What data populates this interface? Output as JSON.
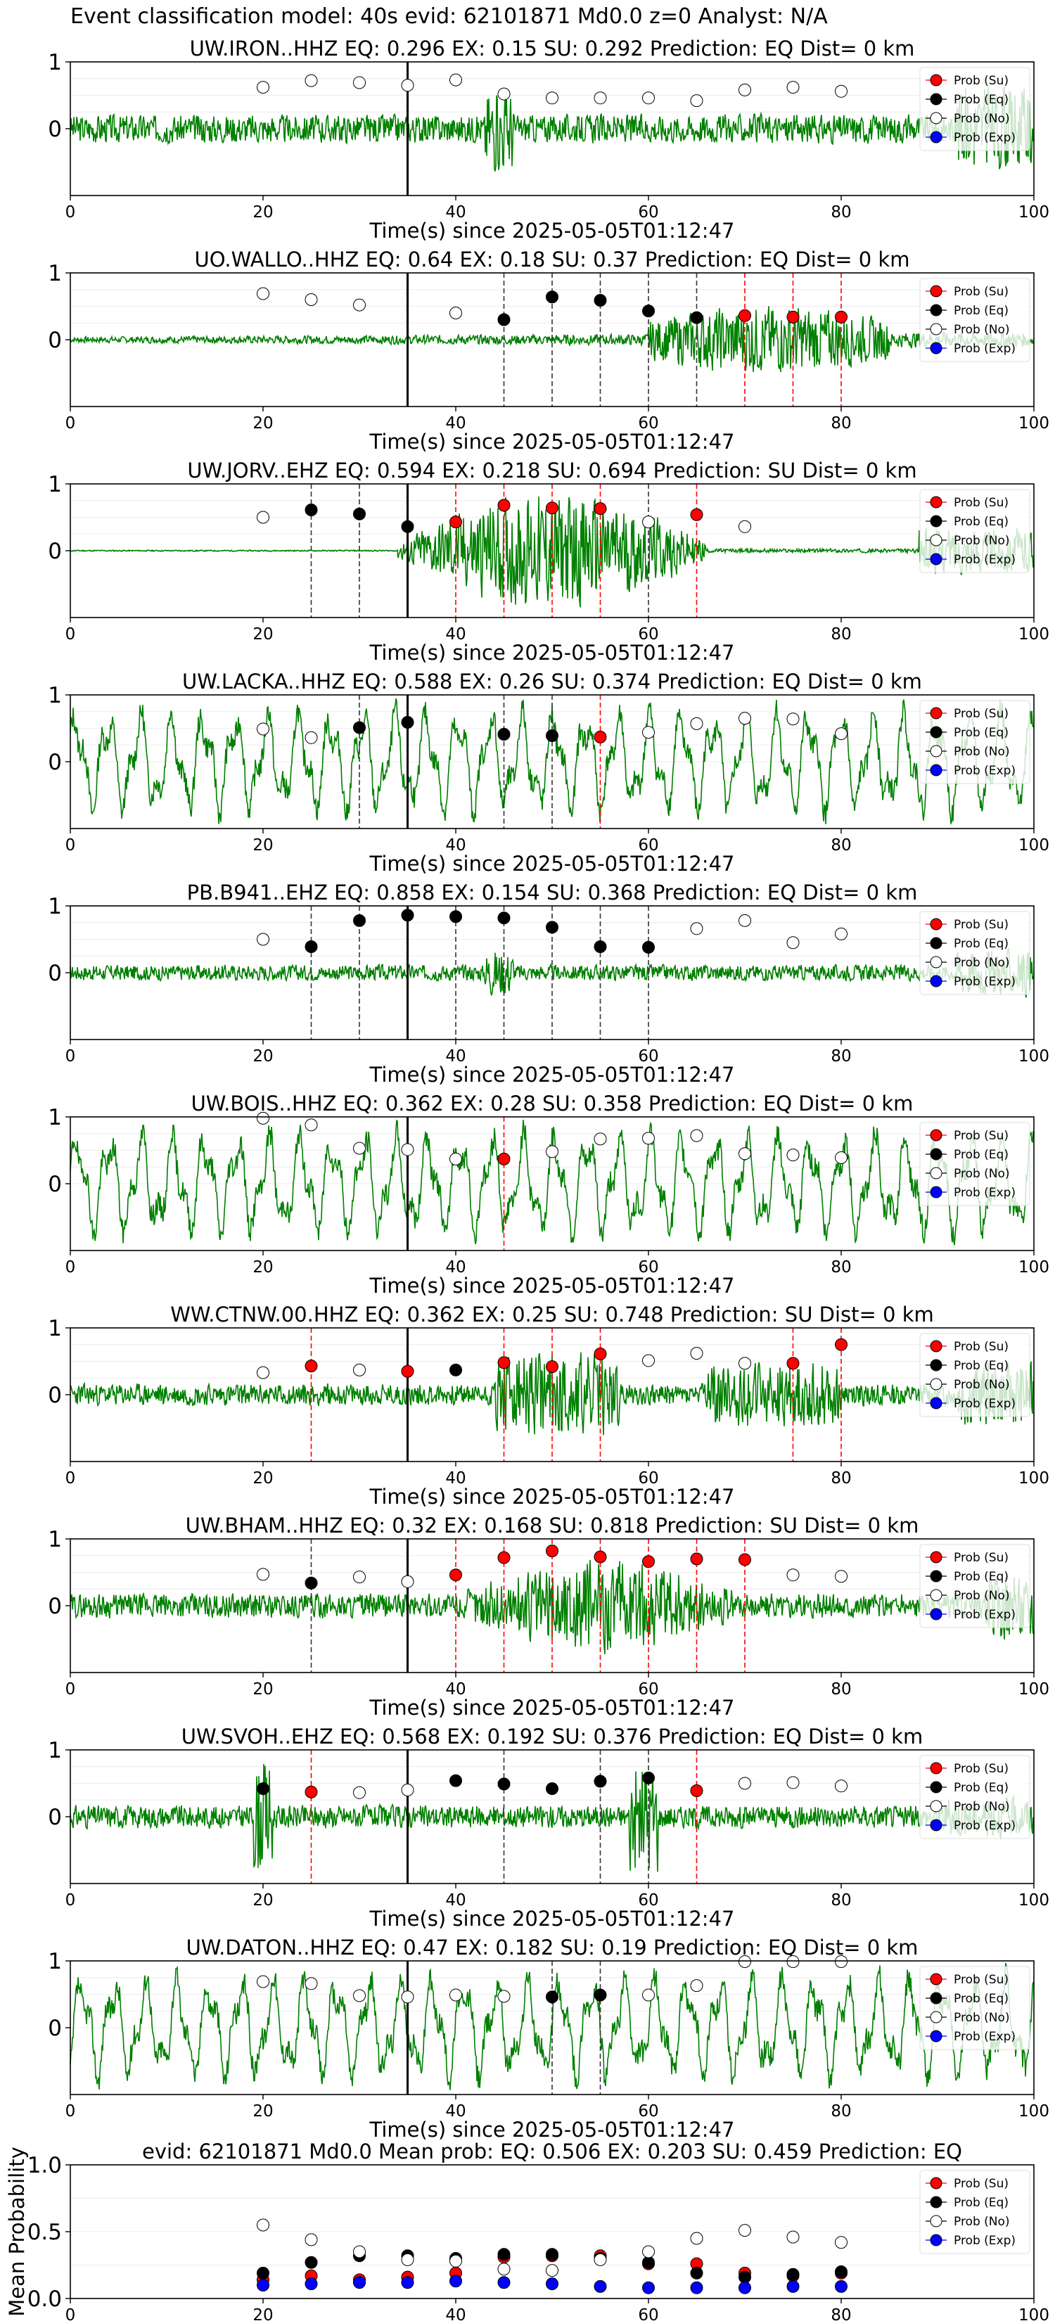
{
  "suptitle": "Event classification model: 40s evid: 62101871 Md0.0 z=0 Analyst: N/A",
  "xlabel": "Time(s) since 2025-05-05T01:12:47",
  "legend": [
    "Prob (Su)",
    "Prob (Eq)",
    "Prob (No)",
    "Prob (Exp)"
  ],
  "colors": {
    "su": "#ff0000",
    "eq": "#000000",
    "no": "#ffffff",
    "exp": "#0000ff",
    "waveform": "#008000",
    "vline_su": "#ff0000",
    "vline_eq": "#333333",
    "pick": "#000000"
  },
  "chart_data": [
    {
      "type": "line",
      "title": "UW.IRON..HHZ   EQ: 0.296  EX: 0.15  SU: 0.292   Prediction: EQ    Dist= 0 km",
      "amp": 1.0,
      "seed": 3,
      "style": "noise",
      "xlim": [
        0,
        100
      ],
      "ylim": [
        -1,
        1
      ],
      "yticks": [
        0,
        1
      ],
      "xticks": [
        0,
        20,
        40,
        60,
        80,
        100
      ],
      "pick_time": 35,
      "legend_position": "upper right",
      "times": [
        20,
        25,
        30,
        35,
        40,
        45,
        50,
        55,
        60,
        65,
        70,
        75,
        80
      ],
      "classes": [
        "no",
        "no",
        "no",
        "no",
        "no",
        "no",
        "no",
        "no",
        "no",
        "no",
        "no",
        "no",
        "no"
      ],
      "values": [
        0.62,
        0.72,
        0.69,
        0.65,
        0.73,
        0.52,
        0.46,
        0.46,
        0.46,
        0.42,
        0.58,
        0.62,
        0.56
      ],
      "vlines": []
    },
    {
      "type": "line",
      "title": "UO.WALLO..HHZ   EQ: 0.64  EX: 0.18  SU: 0.37   Prediction: EQ    Dist= 0 km",
      "amp": 0.6,
      "seed": 7,
      "style": "event",
      "xlim": [
        0,
        100
      ],
      "ylim": [
        -1,
        1
      ],
      "yticks": [
        0,
        1
      ],
      "xticks": [
        0,
        20,
        40,
        60,
        80,
        100
      ],
      "pick_time": 35,
      "legend_position": "upper right",
      "times": [
        20,
        25,
        30,
        40,
        45,
        50,
        55,
        60,
        65,
        70,
        75,
        80
      ],
      "classes": [
        "no",
        "no",
        "no",
        "no",
        "eq",
        "eq",
        "eq",
        "eq",
        "eq",
        "su",
        "su",
        "su"
      ],
      "values": [
        0.69,
        0.6,
        0.52,
        0.4,
        0.3,
        0.64,
        0.59,
        0.43,
        0.33,
        0.36,
        0.34,
        0.34
      ],
      "vlines": [
        {
          "x": 45,
          "c": "eq"
        },
        {
          "x": 50,
          "c": "eq"
        },
        {
          "x": 55,
          "c": "eq"
        },
        {
          "x": 60,
          "c": "eq"
        },
        {
          "x": 65,
          "c": "eq"
        },
        {
          "x": 70,
          "c": "su"
        },
        {
          "x": 75,
          "c": "su"
        },
        {
          "x": 80,
          "c": "su"
        }
      ]
    },
    {
      "type": "line",
      "title": "UW.JORV..EHZ   EQ: 0.594  EX: 0.218  SU: 0.694   Prediction: SU    Dist= 0 km",
      "amp": 0.9,
      "seed": 11,
      "style": "burst",
      "xlim": [
        0,
        100
      ],
      "ylim": [
        -1,
        1
      ],
      "yticks": [
        0,
        1
      ],
      "xticks": [
        0,
        20,
        40,
        60,
        80,
        100
      ],
      "pick_time": 35,
      "legend_position": "upper right",
      "times": [
        20,
        25,
        30,
        35,
        40,
        45,
        50,
        55,
        60,
        65,
        70
      ],
      "classes": [
        "no",
        "eq",
        "eq",
        "eq",
        "su",
        "su",
        "su",
        "su",
        "no",
        "su",
        "no"
      ],
      "values": [
        0.5,
        0.61,
        0.55,
        0.36,
        0.43,
        0.68,
        0.64,
        0.63,
        0.43,
        0.54,
        0.36
      ],
      "vlines": [
        {
          "x": 25,
          "c": "eq"
        },
        {
          "x": 30,
          "c": "eq"
        },
        {
          "x": 40,
          "c": "su"
        },
        {
          "x": 45,
          "c": "su"
        },
        {
          "x": 50,
          "c": "su"
        },
        {
          "x": 55,
          "c": "su"
        },
        {
          "x": 60,
          "c": "eq"
        },
        {
          "x": 65,
          "c": "su"
        }
      ]
    },
    {
      "type": "line",
      "title": "UW.LACKA..HHZ   EQ: 0.588  EX: 0.26  SU: 0.374   Prediction: EQ    Dist= 0 km",
      "amp": 0.9,
      "seed": 13,
      "style": "wave",
      "xlim": [
        0,
        100
      ],
      "ylim": [
        -1,
        1
      ],
      "yticks": [
        0,
        1
      ],
      "xticks": [
        0,
        20,
        40,
        60,
        80,
        100
      ],
      "pick_time": 35,
      "legend_position": "upper right",
      "times": [
        20,
        25,
        30,
        35,
        45,
        50,
        55,
        60,
        65,
        70,
        75,
        80
      ],
      "classes": [
        "no",
        "no",
        "eq",
        "eq",
        "eq",
        "eq",
        "su",
        "no",
        "no",
        "no",
        "no",
        "no"
      ],
      "values": [
        0.49,
        0.36,
        0.51,
        0.59,
        0.41,
        0.39,
        0.37,
        0.44,
        0.57,
        0.65,
        0.64,
        0.42
      ],
      "vlines": [
        {
          "x": 30,
          "c": "eq"
        },
        {
          "x": 45,
          "c": "eq"
        },
        {
          "x": 50,
          "c": "eq"
        },
        {
          "x": 55,
          "c": "su"
        }
      ]
    },
    {
      "type": "line",
      "title": "PB.B941..EHZ   EQ: 0.858  EX: 0.154  SU: 0.368   Prediction: EQ    Dist= 0 km",
      "amp": 0.55,
      "seed": 17,
      "style": "noise",
      "xlim": [
        0,
        100
      ],
      "ylim": [
        -1,
        1
      ],
      "yticks": [
        0,
        1
      ],
      "xticks": [
        0,
        20,
        40,
        60,
        80,
        100
      ],
      "pick_time": 35,
      "legend_position": "upper right",
      "times": [
        20,
        25,
        30,
        35,
        40,
        45,
        50,
        55,
        60,
        65,
        70,
        75,
        80
      ],
      "classes": [
        "no",
        "eq",
        "eq",
        "eq",
        "eq",
        "eq",
        "eq",
        "eq",
        "eq",
        "no",
        "no",
        "no",
        "no"
      ],
      "values": [
        0.5,
        0.39,
        0.78,
        0.86,
        0.84,
        0.82,
        0.68,
        0.39,
        0.38,
        0.66,
        0.78,
        0.45,
        0.58
      ],
      "vlines": [
        {
          "x": 25,
          "c": "eq"
        },
        {
          "x": 30,
          "c": "eq"
        },
        {
          "x": 40,
          "c": "eq"
        },
        {
          "x": 45,
          "c": "eq"
        },
        {
          "x": 50,
          "c": "eq"
        },
        {
          "x": 55,
          "c": "eq"
        },
        {
          "x": 60,
          "c": "eq"
        }
      ]
    },
    {
      "type": "line",
      "title": "UW.BOIS..HHZ   EQ: 0.362  EX: 0.28  SU: 0.358   Prediction: EQ    Dist= 0 km",
      "amp": 1.0,
      "seed": 19,
      "style": "wave",
      "xlim": [
        0,
        100
      ],
      "ylim": [
        -1,
        1
      ],
      "yticks": [
        0,
        1
      ],
      "xticks": [
        0,
        20,
        40,
        60,
        80,
        100
      ],
      "pick_time": 35,
      "legend_position": "upper right",
      "times": [
        20,
        25,
        30,
        35,
        40,
        45,
        50,
        55,
        60,
        65,
        70,
        75,
        80
      ],
      "classes": [
        "no",
        "no",
        "no",
        "no",
        "no",
        "su",
        "no",
        "no",
        "no",
        "no",
        "no",
        "no",
        "no"
      ],
      "values": [
        0.98,
        0.88,
        0.53,
        0.51,
        0.37,
        0.37,
        0.48,
        0.67,
        0.68,
        0.72,
        0.45,
        0.43,
        0.39
      ],
      "vlines": [
        {
          "x": 45,
          "c": "su"
        }
      ]
    },
    {
      "type": "line",
      "title": "WW.CTNW.00.HHZ   EQ: 0.362  EX: 0.25  SU: 0.748   Prediction: SU    Dist= 0 km",
      "amp": 0.85,
      "seed": 23,
      "style": "multi",
      "xlim": [
        0,
        100
      ],
      "ylim": [
        -1,
        1
      ],
      "yticks": [
        0,
        1
      ],
      "xticks": [
        0,
        20,
        40,
        60,
        80,
        100
      ],
      "pick_time": 35,
      "legend_position": "upper right",
      "times": [
        20,
        25,
        30,
        35,
        40,
        45,
        50,
        55,
        60,
        65,
        70,
        75,
        80
      ],
      "classes": [
        "no",
        "su",
        "no",
        "su",
        "eq",
        "su",
        "su",
        "su",
        "no",
        "no",
        "no",
        "su",
        "su"
      ],
      "values": [
        0.33,
        0.43,
        0.37,
        0.35,
        0.37,
        0.48,
        0.42,
        0.61,
        0.51,
        0.62,
        0.47,
        0.47,
        0.75
      ],
      "vlines": [
        {
          "x": 25,
          "c": "su"
        },
        {
          "x": 45,
          "c": "su"
        },
        {
          "x": 50,
          "c": "su"
        },
        {
          "x": 55,
          "c": "su"
        },
        {
          "x": 75,
          "c": "su"
        },
        {
          "x": 80,
          "c": "su"
        }
      ]
    },
    {
      "type": "line",
      "title": "UW.BHAM..HHZ   EQ: 0.32  EX: 0.168  SU: 0.818   Prediction: SU    Dist= 0 km",
      "amp": 0.85,
      "seed": 29,
      "style": "burst2",
      "xlim": [
        0,
        100
      ],
      "ylim": [
        -1,
        1
      ],
      "yticks": [
        0,
        1
      ],
      "xticks": [
        0,
        20,
        40,
        60,
        80,
        100
      ],
      "pick_time": 35,
      "legend_position": "upper right",
      "times": [
        20,
        25,
        30,
        35,
        40,
        45,
        50,
        55,
        60,
        65,
        70,
        75,
        80
      ],
      "classes": [
        "no",
        "eq",
        "no",
        "no",
        "su",
        "su",
        "su",
        "su",
        "su",
        "su",
        "su",
        "no",
        "no"
      ],
      "values": [
        0.47,
        0.34,
        0.43,
        0.36,
        0.46,
        0.72,
        0.82,
        0.73,
        0.66,
        0.7,
        0.69,
        0.46,
        0.44
      ],
      "vlines": [
        {
          "x": 25,
          "c": "eq"
        },
        {
          "x": 40,
          "c": "su"
        },
        {
          "x": 45,
          "c": "su"
        },
        {
          "x": 50,
          "c": "su"
        },
        {
          "x": 55,
          "c": "su"
        },
        {
          "x": 60,
          "c": "su"
        },
        {
          "x": 65,
          "c": "su"
        },
        {
          "x": 70,
          "c": "su"
        }
      ]
    },
    {
      "type": "line",
      "title": "UW.SVOH..EHZ   EQ: 0.568  EX: 0.192  SU: 0.376   Prediction: EQ    Dist= 0 km",
      "amp": 0.8,
      "seed": 31,
      "style": "spikes",
      "xlim": [
        0,
        100
      ],
      "ylim": [
        -1,
        1
      ],
      "yticks": [
        0,
        1
      ],
      "xticks": [
        0,
        20,
        40,
        60,
        80,
        100
      ],
      "pick_time": 35,
      "legend_position": "upper right",
      "times": [
        20,
        25,
        30,
        35,
        40,
        45,
        50,
        55,
        60,
        65,
        70,
        75,
        80
      ],
      "classes": [
        "eq",
        "su",
        "no",
        "no",
        "eq",
        "eq",
        "eq",
        "eq",
        "eq",
        "su",
        "no",
        "no",
        "no"
      ],
      "values": [
        0.42,
        0.37,
        0.36,
        0.4,
        0.54,
        0.49,
        0.42,
        0.53,
        0.58,
        0.39,
        0.5,
        0.51,
        0.46
      ],
      "vlines": [
        {
          "x": 25,
          "c": "su"
        },
        {
          "x": 45,
          "c": "eq"
        },
        {
          "x": 55,
          "c": "eq"
        },
        {
          "x": 60,
          "c": "eq"
        },
        {
          "x": 65,
          "c": "su"
        }
      ]
    },
    {
      "type": "line",
      "title": "UW.DATON..HHZ   EQ: 0.47  EX: 0.182  SU: 0.19   Prediction: EQ    Dist= 0 km",
      "amp": 0.9,
      "seed": 37,
      "style": "wave",
      "xlim": [
        0,
        100
      ],
      "ylim": [
        -1,
        1
      ],
      "yticks": [
        0,
        1
      ],
      "xticks": [
        0,
        20,
        40,
        60,
        80,
        100
      ],
      "pick_time": 35,
      "legend_position": "upper right",
      "times": [
        20,
        25,
        30,
        35,
        40,
        45,
        50,
        55,
        60,
        65,
        70,
        75,
        80
      ],
      "classes": [
        "no",
        "no",
        "no",
        "no",
        "no",
        "no",
        "eq",
        "eq",
        "no",
        "no",
        "no",
        "no",
        "no"
      ],
      "values": [
        0.69,
        0.66,
        0.48,
        0.46,
        0.49,
        0.47,
        0.46,
        0.49,
        0.49,
        0.63,
        0.99,
        0.99,
        0.99
      ],
      "vlines": [
        {
          "x": 50,
          "c": "eq"
        },
        {
          "x": 55,
          "c": "eq"
        }
      ]
    },
    {
      "type": "scatter",
      "title": "evid: 62101871  Md0.0   Mean prob:   EQ: 0.506  EX: 0.203  SU: 0.459   Prediction: EQ",
      "ylabel": "Mean Probability",
      "xlim": [
        0,
        100
      ],
      "ylim": [
        0,
        1
      ],
      "yticks": [
        0.0,
        0.5,
        1.0
      ],
      "xticks": [
        0,
        20,
        40,
        60,
        80,
        100
      ],
      "legend_position": "upper right",
      "x": [
        20,
        25,
        30,
        35,
        40,
        45,
        50,
        55,
        60,
        65,
        70,
        75,
        80
      ],
      "series": [
        {
          "name": "Prob (Su)",
          "key": "su",
          "values": [
            0.14,
            0.17,
            0.14,
            0.16,
            0.19,
            0.31,
            0.32,
            0.32,
            0.26,
            0.26,
            0.19,
            0.17,
            0.19
          ]
        },
        {
          "name": "Prob (Eq)",
          "key": "eq",
          "values": [
            0.19,
            0.27,
            0.32,
            0.32,
            0.3,
            0.33,
            0.33,
            0.3,
            0.27,
            0.19,
            0.16,
            0.18,
            0.2
          ]
        },
        {
          "name": "Prob (No)",
          "key": "no",
          "values": [
            0.55,
            0.44,
            0.35,
            0.29,
            0.28,
            0.22,
            0.21,
            0.29,
            0.35,
            0.45,
            0.51,
            0.46,
            0.42
          ]
        },
        {
          "name": "Prob (Exp)",
          "key": "exp",
          "values": [
            0.1,
            0.11,
            0.12,
            0.12,
            0.13,
            0.12,
            0.11,
            0.09,
            0.08,
            0.08,
            0.08,
            0.09,
            0.09
          ]
        }
      ]
    }
  ]
}
